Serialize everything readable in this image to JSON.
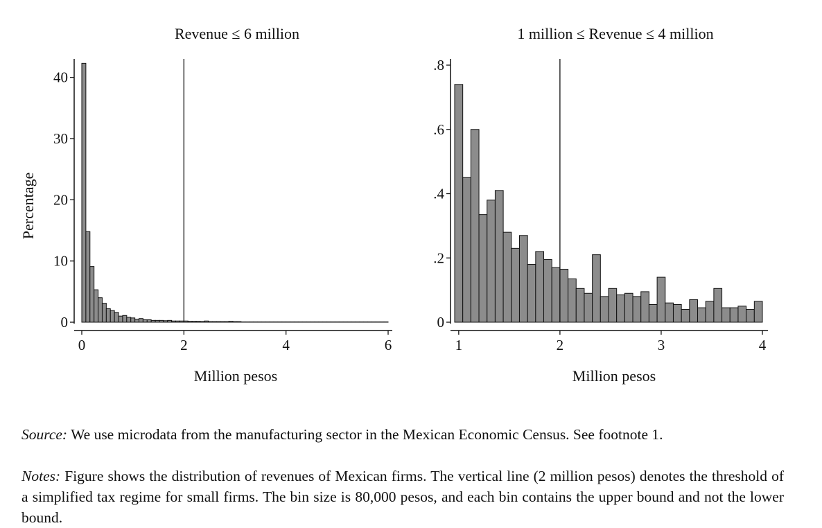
{
  "chart_data": [
    {
      "type": "bar",
      "title": "Revenue ≤ 6 million",
      "xlabel": "Million pesos",
      "ylabel": "Percentage",
      "xlim": [
        0,
        6
      ],
      "ylim": [
        0,
        42
      ],
      "xticks": [
        "0",
        "2",
        "4",
        "6"
      ],
      "yticks": [
        "0",
        "10",
        "20",
        "30",
        "40"
      ],
      "bin_width": 0.08,
      "threshold": 2,
      "bar_color": "#8c8c8c",
      "values": [
        42.3,
        14.8,
        9.1,
        5.3,
        4.0,
        3.1,
        2.2,
        1.9,
        1.6,
        1.0,
        1.1,
        0.8,
        0.7,
        0.5,
        0.6,
        0.4,
        0.4,
        0.3,
        0.3,
        0.3,
        0.25,
        0.3,
        0.2,
        0.2,
        0.2,
        0.2,
        0.15,
        0.15,
        0.15,
        0.12,
        0.2,
        0.1,
        0.1,
        0.1,
        0.1,
        0.1,
        0.15,
        0.1,
        0.1,
        0.05,
        0.05,
        0.05,
        0.05,
        0.05,
        0.05,
        0.05,
        0.05,
        0.05,
        0.05,
        0.05,
        0.05,
        0.05,
        0.05,
        0.05,
        0.05,
        0.05,
        0.05,
        0.05,
        0.05,
        0.05,
        0.05,
        0.05,
        0.05,
        0.05,
        0.05,
        0.05,
        0.05,
        0.05,
        0.05,
        0.05,
        0.05,
        0.05,
        0.05,
        0.05,
        0.05
      ]
    },
    {
      "type": "bar",
      "title": "1 million ≤ Revenue ≤ 4 million",
      "xlabel": "Million pesos",
      "ylabel": "",
      "xlim": [
        0.96,
        4
      ],
      "ylim": [
        0,
        0.8
      ],
      "xticks": [
        "1",
        "2",
        "3",
        "4"
      ],
      "yticks": [
        "0",
        ".2",
        ".4",
        ".6",
        ".8"
      ],
      "bin_width": 0.08,
      "threshold": 2,
      "bar_color": "#8c8c8c",
      "values": [
        0.74,
        0.45,
        0.6,
        0.335,
        0.38,
        0.41,
        0.28,
        0.23,
        0.27,
        0.18,
        0.22,
        0.195,
        0.17,
        0.165,
        0.135,
        0.105,
        0.09,
        0.21,
        0.08,
        0.105,
        0.085,
        0.09,
        0.08,
        0.095,
        0.055,
        0.14,
        0.06,
        0.055,
        0.04,
        0.07,
        0.045,
        0.065,
        0.105,
        0.045,
        0.045,
        0.05,
        0.04,
        0.065
      ]
    }
  ],
  "caption": {
    "source_label": "Source:",
    "source_text": "We use microdata from the manufacturing sector in the Mexican Economic Census. See footnote 1.",
    "notes_label": "Notes:",
    "notes_text": "Figure shows the distribution of revenues of Mexican firms. The vertical line (2 million pesos) denotes the threshold of a simplified tax regime for small firms. The bin size is 80,000 pesos, and each bin contains the upper bound and not the lower bound."
  }
}
